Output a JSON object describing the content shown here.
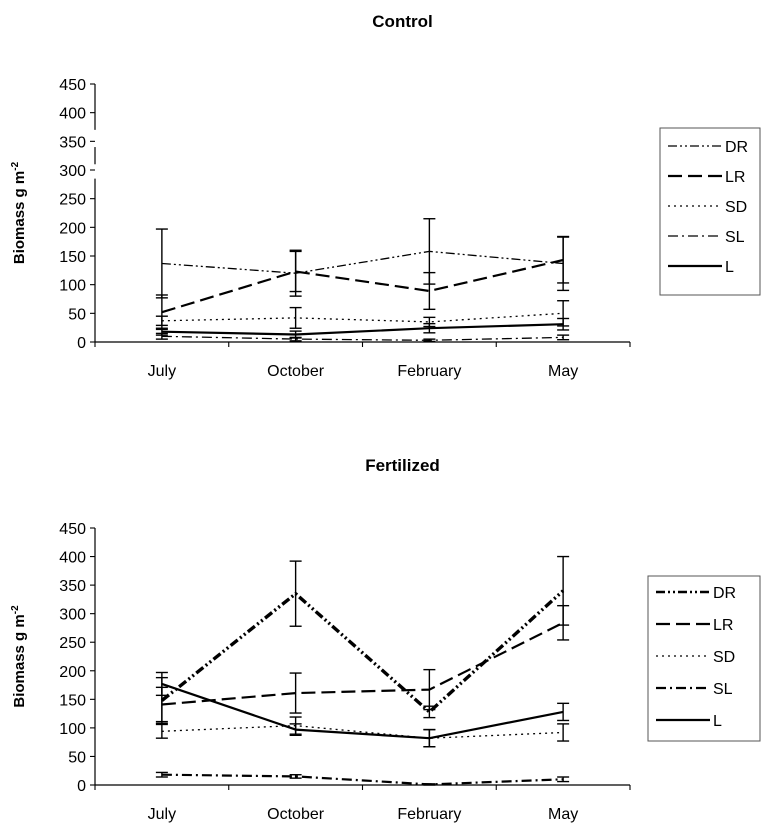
{
  "chart_data": [
    {
      "type": "line",
      "title": "Control",
      "xlabel": "",
      "ylabel": "Biomass g m",
      "ylabel_sup": "-2",
      "ylim": [
        0,
        450
      ],
      "yticks": [
        "0",
        "50",
        "100",
        "150",
        "200",
        "250",
        "300",
        "350",
        "400",
        "450"
      ],
      "categories": [
        "July",
        "October",
        "February",
        "May"
      ],
      "legend_position": "right",
      "series": [
        {
          "name": "DR",
          "values": [
            137,
            120,
            158,
            137
          ],
          "errors": [
            60,
            40,
            57,
            47
          ],
          "style": "dash-dot-dot",
          "weight": "thin"
        },
        {
          "name": "LR",
          "values": [
            52,
            123,
            89,
            143
          ],
          "errors": [
            30,
            35,
            32,
            40
          ],
          "style": "long-dash",
          "weight": "medium"
        },
        {
          "name": "SD",
          "values": [
            37,
            42,
            35,
            50
          ],
          "errors": [
            8,
            18,
            8,
            22
          ],
          "style": "dotted",
          "weight": "thin"
        },
        {
          "name": "SL",
          "values": [
            10,
            5,
            3,
            8
          ],
          "errors": [
            5,
            3,
            2,
            4
          ],
          "style": "dash-dot",
          "weight": "thin"
        },
        {
          "name": "L",
          "values": [
            18,
            13,
            24,
            31
          ],
          "errors": [
            6,
            6,
            8,
            10
          ],
          "style": "solid",
          "weight": "medium"
        }
      ]
    },
    {
      "type": "line",
      "title": "Fertilized",
      "xlabel": "",
      "ylabel": "Biomass g m",
      "ylabel_sup": "-2",
      "ylim": [
        0,
        450
      ],
      "yticks": [
        "0",
        "50",
        "100",
        "150",
        "200",
        "250",
        "300",
        "350",
        "400",
        "450"
      ],
      "categories": [
        "July",
        "October",
        "February",
        "May"
      ],
      "legend_position": "right",
      "series": [
        {
          "name": "DR",
          "values": [
            148,
            335,
            128,
            340
          ],
          "errors": [
            40,
            57,
            10,
            60
          ],
          "style": "dash-dot-dot",
          "weight": "heavy"
        },
        {
          "name": "LR",
          "values": [
            141,
            161,
            167,
            284
          ],
          "errors": [
            30,
            35,
            35,
            30
          ],
          "style": "long-dash",
          "weight": "medium"
        },
        {
          "name": "SD",
          "values": [
            94,
            104,
            82,
            92
          ],
          "errors": [
            12,
            15,
            15,
            15
          ],
          "style": "dotted",
          "weight": "thin"
        },
        {
          "name": "SL",
          "values": [
            18,
            15,
            1,
            10
          ],
          "errors": [
            4,
            3,
            1,
            4
          ],
          "style": "dash-dot",
          "weight": "medium"
        },
        {
          "name": "L",
          "values": [
            177,
            97,
            82,
            128
          ],
          "errors": [
            20,
            10,
            15,
            15
          ],
          "style": "solid",
          "weight": "medium"
        }
      ]
    }
  ]
}
